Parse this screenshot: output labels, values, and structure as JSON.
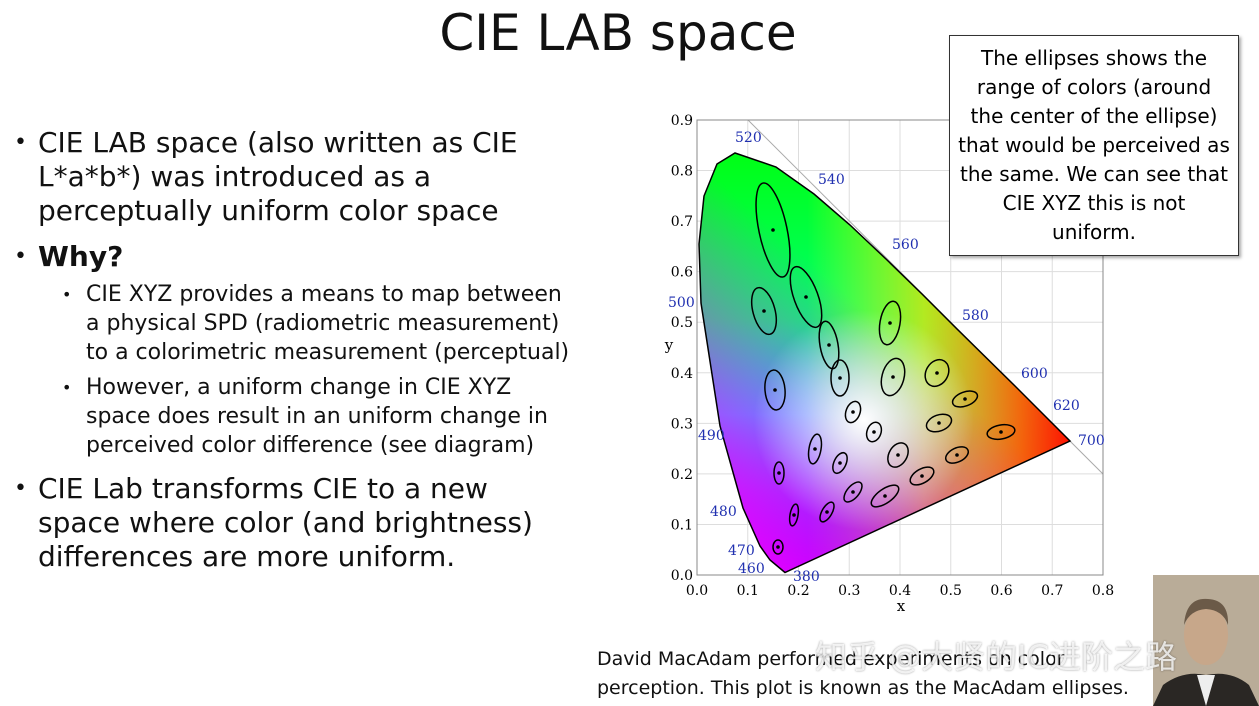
{
  "title": "CIE LAB space",
  "bullets": [
    {
      "text": "CIE LAB space (also written as CIE L*a*b*) was introduced as a perceptually uniform color space"
    },
    {
      "text": "Why?",
      "sub": [
        "CIE XYZ provides a means to map between a physical SPD (radiometric measurement) to a colorimetric measurement (perceptual)",
        "However, a uniform change in CIE XYZ space does result in an uniform change in perceived color difference (see diagram)"
      ]
    },
    {
      "text": "CIE Lab transforms CIE to a new space where color (and brightness) differences are more uniform."
    }
  ],
  "callout": "The ellipses shows the range of colors (around the center of the ellipse) that would be perceived as the same. We can see that CIE XYZ this is not uniform.",
  "figure": {
    "x_label": "x",
    "y_label": "y",
    "xlim": [
      0,
      0.8
    ],
    "ylim": [
      0,
      0.9
    ],
    "xticks": [
      {
        "value": 0,
        "label": "0.0"
      },
      0.1,
      0.2,
      0.3,
      0.4,
      0.5,
      0.6,
      0.7,
      0.8
    ],
    "yticks": [
      {
        "value": 0,
        "label": "0.0"
      },
      0.1,
      0.2,
      0.3,
      0.4,
      0.5,
      0.6,
      0.7,
      0.8,
      0.9
    ],
    "wavelengths": [
      520,
      540,
      560,
      580,
      600,
      620,
      700,
      500,
      490,
      480,
      470,
      460,
      380
    ]
  },
  "caption": "David MacAdam performed experiments on color perception. This plot is known as the MacAdam ellipses.",
  "watermark": "知乎 @大贤的IC进阶之路"
}
